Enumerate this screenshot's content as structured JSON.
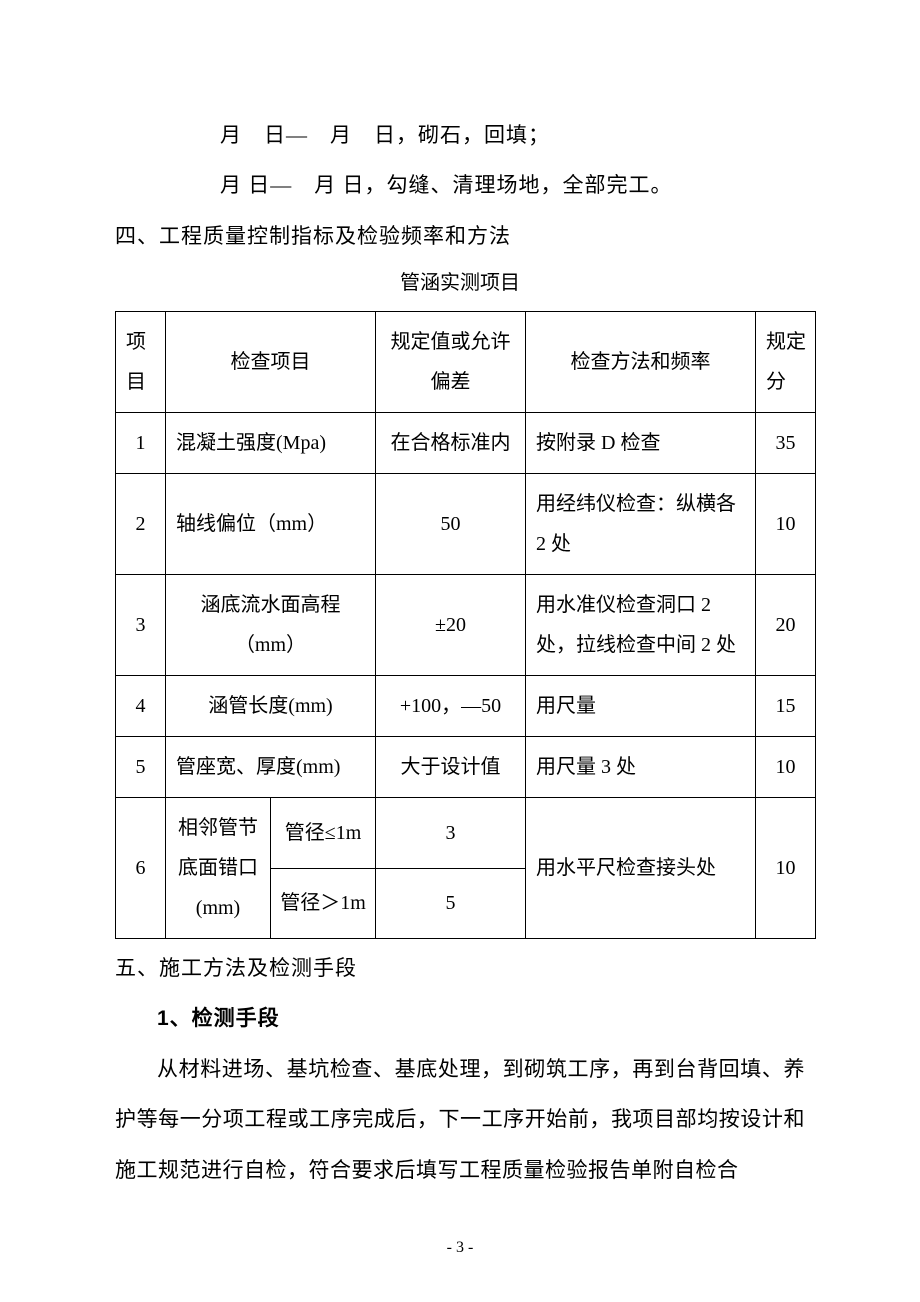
{
  "lines": {
    "l1": "月　日—　月　日，砌石，回填；",
    "l2": "月 日—　月 日，勾缝、清理场地，全部完工。"
  },
  "headings": {
    "h4": "四、工程质量控制指标及检验频率和方法",
    "table_title": "管涵实测项目",
    "h5": "五、施工方法及检测手段",
    "sub1": "1、检测手段"
  },
  "table": {
    "header": {
      "idx": "项目",
      "item": "检查项目",
      "dev": "规定值或允许偏差",
      "method": "检查方法和频率",
      "score": "规定分"
    },
    "rows": [
      {
        "idx": "1",
        "item": "混凝土强度(Mpa)",
        "dev": "在合格标准内",
        "method": "按附录 D 检查",
        "score": "35"
      },
      {
        "idx": "2",
        "item": "轴线偏位（mm）",
        "dev": "50",
        "method": "用经纬仪检查：纵横各 2 处",
        "score": "10"
      },
      {
        "idx": "3",
        "item": "涵底流水面高程（mm）",
        "dev": "±20",
        "method": "用水准仪检查洞口 2 处，拉线检查中间 2 处",
        "score": "20"
      },
      {
        "idx": "4",
        "item": "涵管长度(mm)",
        "dev": "+100，—50",
        "method": "用尺量",
        "score": "15"
      },
      {
        "idx": "5",
        "item": "管座宽、厚度(mm)",
        "dev": "大于设计值",
        "method": "用尺量 3 处",
        "score": "10"
      }
    ],
    "row6": {
      "idx": "6",
      "item_main": "相邻管节底面错口(mm)",
      "sub_a_label": "管径≤1m",
      "sub_a_dev": "3",
      "sub_b_label": "管径＞1m",
      "sub_b_dev": "5",
      "method": "用水平尺检查接头处",
      "score": "10"
    }
  },
  "paragraph": "从材料进场、基坑检查、基底处理，到砌筑工序，再到台背回填、养护等每一分项工程或工序完成后，下一工序开始前，我项目部均按设计和施工规范进行自检，符合要求后填写工程质量检验报告单附自检合",
  "page_number": "- 3 -"
}
